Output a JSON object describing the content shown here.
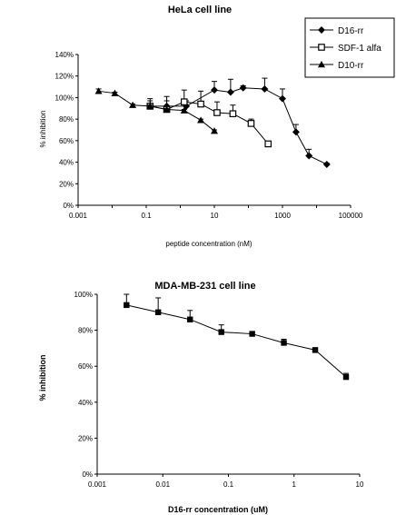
{
  "chart_data": [
    {
      "type": "line",
      "title": "HeLa cell line",
      "xlabel": "peptide concentration (nM)",
      "ylabel": "% inhibition",
      "xscale": "log",
      "xlim": [
        0.001,
        100000
      ],
      "ylim": [
        0,
        140
      ],
      "x_ticks": [
        "0.001",
        "0.1",
        "10",
        "1000",
        "100000"
      ],
      "y_ticks": [
        "0%",
        "20%",
        "40%",
        "60%",
        "80%",
        "100%",
        "120%",
        "140%"
      ],
      "grid": false,
      "legend_position": "top-right",
      "series": [
        {
          "name": "D16-rr",
          "marker": "diamond",
          "x": [
            0.13,
            0.4,
            1.5,
            10,
            30,
            70,
            300,
            1000,
            2500,
            6000,
            20000
          ],
          "y": [
            92,
            92,
            92,
            107,
            105,
            109,
            108,
            99,
            68,
            46,
            38
          ],
          "err": [
            5,
            5,
            5,
            8,
            12,
            2,
            10,
            9,
            7,
            6,
            1
          ]
        },
        {
          "name": "SDF-1 alfa",
          "marker": "square-open",
          "x": [
            0.13,
            0.4,
            1.3,
            4,
            12,
            35,
            120,
            380
          ],
          "y": [
            92,
            89,
            96,
            94,
            86,
            85,
            76,
            57
          ],
          "err": [
            7,
            12,
            11,
            12,
            10,
            8,
            4,
            2
          ]
        },
        {
          "name": "D10-rr",
          "marker": "triangle",
          "x": [
            0.004,
            0.012,
            0.04,
            0.13,
            0.4,
            1.3,
            4,
            10
          ],
          "y": [
            106,
            104,
            93,
            92,
            89,
            88,
            79,
            69
          ],
          "err": [
            2,
            1,
            1,
            1,
            1,
            1,
            1,
            1
          ]
        }
      ]
    },
    {
      "type": "line",
      "title": "MDA-MB-231 cell line",
      "xlabel": "D16-rr concentration (uM)",
      "ylabel": "% inhibition",
      "xscale": "log",
      "xlim": [
        0.001,
        10
      ],
      "ylim": [
        0,
        100
      ],
      "x_ticks": [
        "0.001",
        "0.01",
        "0.1",
        "1",
        "10"
      ],
      "y_ticks": [
        "0%",
        "20%",
        "40%",
        "60%",
        "80%",
        "100%"
      ],
      "grid": false,
      "series": [
        {
          "marker": "square",
          "x": [
            0.0028,
            0.0085,
            0.026,
            0.078,
            0.23,
            0.7,
            2.1,
            6.2
          ],
          "y": [
            94,
            90,
            86,
            79,
            78,
            73,
            69,
            54
          ],
          "err": [
            6,
            8,
            5,
            4,
            1,
            2,
            1,
            2
          ]
        }
      ]
    }
  ]
}
